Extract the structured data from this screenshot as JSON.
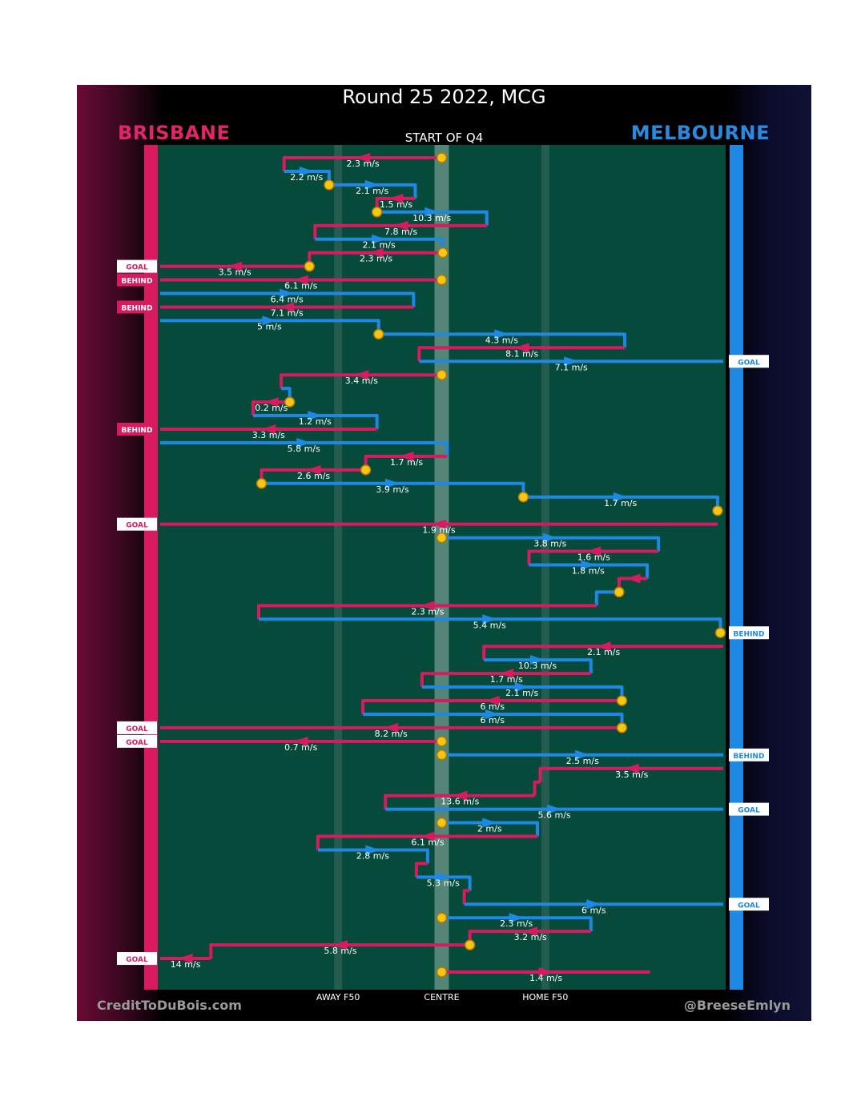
{
  "title": "Round 25 2022, MCG",
  "subtitle": "START OF Q4",
  "teams": {
    "home": {
      "name": "BRISBANE",
      "color": "#d81b60"
    },
    "away": {
      "name": "MELBOURNE",
      "color": "#1e88e5"
    }
  },
  "credits": {
    "left": "CreditToDuBois.com",
    "right": "@BreeseEmlyn"
  },
  "colors": {
    "field": "#054a3a",
    "possession_marker": "#f5c518"
  },
  "chart_data": {
    "type": "line",
    "title": "Round 25 2022, MCG",
    "subtitle": "START OF Q4",
    "description_axis": "field position from Brisbane goal (0) to Melbourne goal (100)",
    "x_axis": {
      "min": 0,
      "max": 100,
      "ticks": [
        {
          "x": 31.6,
          "label": "AWAY F50"
        },
        {
          "x": 50,
          "label": "CENTRE"
        },
        {
          "x": 68.4,
          "label": "HOME F50"
        }
      ]
    },
    "series": [
      {
        "name": "BRISBANE",
        "color": "#d81b60"
      },
      {
        "name": "MELBOURNE",
        "color": "#1e88e5"
      }
    ],
    "chains": [
      {
        "team": "home",
        "speed": "2.3 m/s",
        "x0": 50,
        "x1": 22,
        "row": 0,
        "end_row": 1,
        "marker": "start"
      },
      {
        "team": "away",
        "speed": "2.2 m/s",
        "x0": 22,
        "x1": 30,
        "row": 1,
        "end_row": 2,
        "marker": "end"
      },
      {
        "team": "away",
        "speed": "2.1 m/s",
        "x0": 30,
        "x1": 45.3,
        "row": 2,
        "end_row": 3
      },
      {
        "team": "home",
        "speed": "1.5 m/s",
        "x0": 45.3,
        "x1": 38.5,
        "row": 3,
        "end_row": 4,
        "marker": "end"
      },
      {
        "team": "away",
        "speed": "10.3 m/s",
        "x0": 38.5,
        "x1": 58,
        "row": 4,
        "end_row": 5
      },
      {
        "team": "home",
        "speed": "7.8 m/s",
        "x0": 58,
        "x1": 27.5,
        "row": 5,
        "end_row": 6
      },
      {
        "team": "away",
        "speed": "2.1 m/s",
        "x0": 27.5,
        "x1": 50.2,
        "row": 6,
        "end_row": 7,
        "marker": "end"
      },
      {
        "team": "home",
        "speed": "2.3 m/s",
        "x0": 50.2,
        "x1": 26.5,
        "row": 7,
        "end_row": 8,
        "marker": "end"
      },
      {
        "team": "home",
        "speed": "3.5 m/s",
        "x0": 26.5,
        "x1": 0,
        "row": 8,
        "result": "GOAL"
      },
      {
        "team": "home",
        "speed": "6.1 m/s",
        "x0": 50,
        "x1": 0,
        "row": 9,
        "result": "BEHIND",
        "marker": "start"
      },
      {
        "team": "away",
        "speed": "6.4 m/s",
        "x0": 0,
        "x1": 45,
        "row": 10,
        "end_row": 11
      },
      {
        "team": "home",
        "speed": "7.1 m/s",
        "x0": 45,
        "x1": 0,
        "row": 11,
        "result": "BEHIND"
      },
      {
        "team": "away",
        "speed": "5 m/s",
        "x0": 0,
        "x1": 38.8,
        "row": 12,
        "end_row": 13,
        "marker": "end"
      },
      {
        "team": "away",
        "speed": "4.3 m/s",
        "x0": 38.8,
        "x1": 82.5,
        "row": 13,
        "end_row": 14
      },
      {
        "team": "home",
        "speed": "8.1 m/s",
        "x0": 82.5,
        "x1": 46,
        "row": 14,
        "end_row": 15
      },
      {
        "team": "away",
        "speed": "7.1 m/s",
        "x0": 46,
        "x1": 100,
        "row": 15,
        "result": "GOAL"
      },
      {
        "team": "home",
        "speed": "3.4 m/s",
        "x0": 50,
        "x1": 21.5,
        "row": 16,
        "end_row": 17,
        "marker": "start"
      },
      {
        "team": "away",
        "speed": "",
        "x0": 21.5,
        "x1": 23,
        "row": 17,
        "end_row": 18,
        "marker": "end"
      },
      {
        "team": "home",
        "speed": "0.2 m/s",
        "x0": 23,
        "x1": 16.5,
        "row": 18,
        "end_row": 19
      },
      {
        "team": "away",
        "speed": "1.2 m/s",
        "x0": 16.5,
        "x1": 38.5,
        "row": 19,
        "end_row": 20
      },
      {
        "team": "home",
        "speed": "3.3 m/s",
        "x0": 38.5,
        "x1": 0,
        "row": 20,
        "result": "BEHIND"
      },
      {
        "team": "away",
        "speed": "5.8 m/s",
        "x0": 0,
        "x1": 51,
        "row": 21,
        "end_row": 22
      },
      {
        "team": "home",
        "speed": "1.7 m/s",
        "x0": 51,
        "x1": 36.5,
        "row": 22,
        "end_row": 23,
        "marker": "end"
      },
      {
        "team": "home",
        "speed": "2.6 m/s",
        "x0": 36.5,
        "x1": 18,
        "row": 23,
        "end_row": 24,
        "marker": "end"
      },
      {
        "team": "away",
        "speed": "3.9 m/s",
        "x0": 18,
        "x1": 64.5,
        "row": 24,
        "end_row": 25,
        "marker": "end"
      },
      {
        "team": "away",
        "speed": "1.7 m/s",
        "x0": 64.5,
        "x1": 99,
        "row": 25,
        "end_row": 26,
        "marker": "end"
      },
      {
        "team": "home",
        "speed": "1.9 m/s",
        "x0": 99,
        "x1": 0,
        "row": 27,
        "result": "GOAL"
      },
      {
        "team": "away",
        "speed": "3.8 m/s",
        "x0": 50,
        "x1": 88.5,
        "row": 28,
        "end_row": 29,
        "marker": "start"
      },
      {
        "team": "home",
        "speed": "1.6 m/s",
        "x0": 88.5,
        "x1": 65.5,
        "row": 29,
        "end_row": 30
      },
      {
        "team": "away",
        "speed": "1.8 m/s",
        "x0": 65.5,
        "x1": 86.5,
        "row": 30,
        "end_row": 31
      },
      {
        "team": "home",
        "speed": "",
        "x0": 86.5,
        "x1": 81.5,
        "row": 31,
        "end_row": 32,
        "marker": "end"
      },
      {
        "team": "away",
        "speed": "",
        "x0": 81.5,
        "x1": 77.5,
        "row": 32,
        "end_row": 33
      },
      {
        "team": "home",
        "speed": "2.3 m/s",
        "x0": 77.5,
        "x1": 17.5,
        "row": 33,
        "end_row": 34
      },
      {
        "team": "away",
        "speed": "5.4 m/s",
        "x0": 17.5,
        "x1": 99.5,
        "row": 34,
        "end_row": 35,
        "marker": "end"
      },
      {
        "team": "away",
        "speed": "",
        "x0": 99.5,
        "x1": 100,
        "row": 35,
        "result": "BEHIND"
      },
      {
        "team": "home",
        "speed": "2.1 m/s",
        "x0": 100,
        "x1": 57.5,
        "row": 36,
        "end_row": 37
      },
      {
        "team": "away",
        "speed": "10.3 m/s",
        "x0": 57.5,
        "x1": 76.5,
        "row": 37,
        "end_row": 38
      },
      {
        "team": "home",
        "speed": "1.7 m/s",
        "x0": 76.5,
        "x1": 46.5,
        "row": 38,
        "end_row": 39
      },
      {
        "team": "away",
        "speed": "2.1 m/s",
        "x0": 46.5,
        "x1": 82,
        "row": 39,
        "end_row": 40,
        "marker": "end"
      },
      {
        "team": "home",
        "speed": "6 m/s",
        "x0": 82,
        "x1": 36,
        "row": 40,
        "end_row": 41
      },
      {
        "team": "away",
        "speed": "6 m/s",
        "x0": 36,
        "x1": 82,
        "row": 41,
        "end_row": 42,
        "marker": "end"
      },
      {
        "team": "home",
        "speed": "8.2 m/s",
        "x0": 82,
        "x1": 0,
        "row": 42,
        "result": "GOAL"
      },
      {
        "team": "home",
        "speed": "0.7 m/s",
        "x0": 50,
        "x1": 0,
        "row": 43,
        "result": "GOAL",
        "marker": "start"
      },
      {
        "team": "away",
        "speed": "2.5 m/s",
        "x0": 50,
        "x1": 100,
        "row": 44,
        "result": "BEHIND",
        "marker": "start"
      },
      {
        "team": "home",
        "speed": "3.5 m/s",
        "x0": 100,
        "x1": 67.5,
        "row": 45,
        "end_row": 46
      },
      {
        "team": "home",
        "speed": "",
        "x0": 67.5,
        "x1": 66.5,
        "row": 46,
        "end_row": 47
      },
      {
        "team": "home",
        "speed": "13.6 m/s",
        "x0": 66.5,
        "x1": 40,
        "row": 47,
        "end_row": 48
      },
      {
        "team": "away",
        "speed": "5.6 m/s",
        "x0": 40,
        "x1": 100,
        "row": 48,
        "result": "GOAL"
      },
      {
        "team": "away",
        "speed": "2 m/s",
        "x0": 50,
        "x1": 67,
        "row": 49,
        "end_row": 50,
        "marker": "start"
      },
      {
        "team": "home",
        "speed": "6.1 m/s",
        "x0": 67,
        "x1": 28,
        "row": 50,
        "end_row": 51
      },
      {
        "team": "away",
        "speed": "2.8 m/s",
        "x0": 28,
        "x1": 47.5,
        "row": 51,
        "end_row": 52
      },
      {
        "team": "home",
        "speed": "",
        "x0": 47.5,
        "x1": 45.5,
        "row": 52,
        "end_row": 53
      },
      {
        "team": "away",
        "speed": "5.3 m/s",
        "x0": 45.5,
        "x1": 55,
        "row": 53,
        "end_row": 54
      },
      {
        "team": "home",
        "speed": "",
        "x0": 55,
        "x1": 54,
        "row": 54,
        "end_row": 55
      },
      {
        "team": "away",
        "speed": "6 m/s",
        "x0": 54,
        "x1": 100,
        "row": 55,
        "result": "GOAL"
      },
      {
        "team": "away",
        "speed": "2.3 m/s",
        "x0": 50,
        "x1": 76.5,
        "row": 56,
        "end_row": 57,
        "marker": "start"
      },
      {
        "team": "home",
        "speed": "3.2 m/s",
        "x0": 76.5,
        "x1": 55,
        "row": 57,
        "end_row": 58,
        "marker": "end"
      },
      {
        "team": "home",
        "speed": "5.8 m/s",
        "x0": 55,
        "x1": 9,
        "row": 58,
        "end_row": 59
      },
      {
        "team": "home",
        "speed": "14 m/s",
        "x0": 9,
        "x1": 0,
        "row": 59,
        "result": "GOAL"
      },
      {
        "team": "home",
        "speed": "1.4 m/s",
        "x0": 50,
        "x1": 87,
        "row": 60,
        "marker": "start"
      }
    ]
  }
}
